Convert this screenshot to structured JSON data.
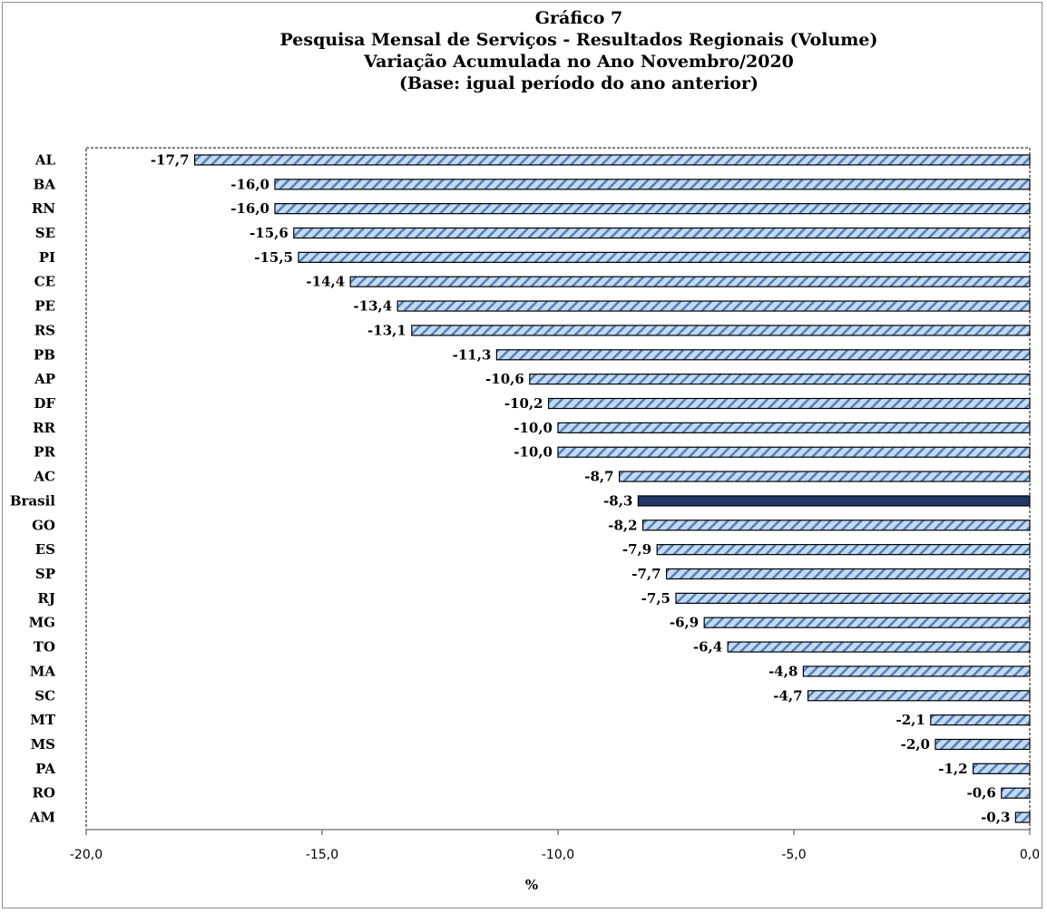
{
  "chart_data": {
    "type": "bar",
    "orientation": "horizontal",
    "title_lines": [
      "Gráfico 7",
      "Pesquisa  Mensal de Serviços - Resultados Regionais (Volume)",
      "Variação Acumulada no Ano Novembro/2020",
      "(Base: igual período do ano anterior)"
    ],
    "xlabel": "%",
    "ylabel": "",
    "xlim": [
      -20,
      0
    ],
    "xticks": [
      -20,
      -15,
      -10,
      -5,
      0
    ],
    "xtick_labels": [
      "-20,0",
      "-15,0",
      "-10,0",
      "-5,0",
      "0,0"
    ],
    "grid": false,
    "categories": [
      "AL",
      "BA",
      "RN",
      "SE",
      "PI",
      "CE",
      "PE",
      "RS",
      "PB",
      "AP",
      "DF",
      "RR",
      "PR",
      "AC",
      "Brasil",
      "GO",
      "ES",
      "SP",
      "RJ",
      "MG",
      "TO",
      "MA",
      "SC",
      "MT",
      "MS",
      "PA",
      "RO",
      "AM"
    ],
    "values": [
      -17.7,
      -16.0,
      -16.0,
      -15.6,
      -15.5,
      -14.4,
      -13.4,
      -13.1,
      -11.3,
      -10.6,
      -10.2,
      -10.0,
      -10.0,
      -8.7,
      -8.3,
      -8.2,
      -7.9,
      -7.7,
      -7.5,
      -6.9,
      -6.4,
      -4.8,
      -4.7,
      -2.1,
      -2.0,
      -1.2,
      -0.6,
      -0.3
    ],
    "value_labels": [
      "-17,7",
      "-16,0",
      "-16,0",
      "-15,6",
      "-15,5",
      "-14,4",
      "-13,4",
      "-13,1",
      "-11,3",
      "-10,6",
      "-10,2",
      "-10,0",
      "-10,0",
      "-8,7",
      "-8,3",
      "-8,2",
      "-7,9",
      "-7,7",
      "-7,5",
      "-6,9",
      "-6,4",
      "-4,8",
      "-4,7",
      "-2,1",
      "-2,0",
      "-1,2",
      "-0,6",
      "-0,3"
    ],
    "highlight_category": "Brasil",
    "colors": {
      "bar_fill": "#c5d9f1",
      "bar_stripe": "#4f81bd",
      "highlight_fill": "#1f3864",
      "bar_border": "#000000"
    }
  }
}
